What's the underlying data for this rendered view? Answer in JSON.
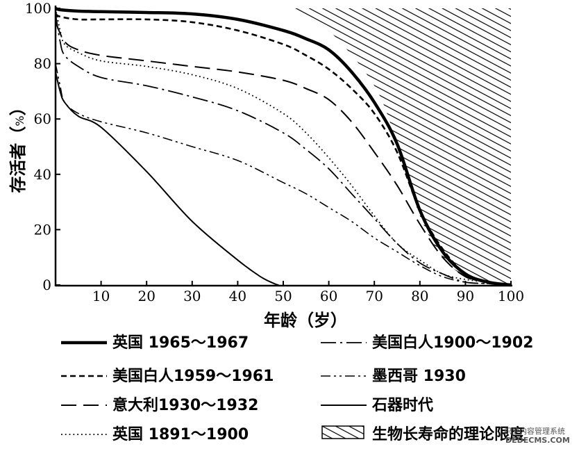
{
  "chart_data": {
    "type": "line",
    "title": "",
    "xlabel": "年龄（岁）",
    "ylabel": "存活者（%）",
    "ylabel_main": "存活者",
    "ylabel_unit_open": "（",
    "ylabel_unit_pct": "%",
    "ylabel_unit_close": "）",
    "xlim": [
      0,
      100
    ],
    "ylim": [
      0,
      100
    ],
    "x_ticks": [
      "10",
      "20",
      "30",
      "40",
      "50",
      "60",
      "70",
      "80",
      "90",
      "100"
    ],
    "y_ticks": [
      "0",
      "20",
      "40",
      "60",
      "80",
      "100"
    ],
    "grid": false,
    "legend_position": "bottom",
    "series": [
      {
        "name": "英国 1965～1967",
        "style": "thick-solid",
        "x": [
          0,
          1,
          5,
          10,
          20,
          30,
          40,
          50,
          55,
          60,
          65,
          70,
          75,
          80,
          85,
          90,
          95,
          100
        ],
        "y": [
          100,
          99.5,
          99,
          98.8,
          98.5,
          98,
          96,
          92,
          89,
          85,
          77,
          66,
          51,
          27,
          12,
          4,
          1,
          0
        ]
      },
      {
        "name": "美国白人1959～1961",
        "style": "short-dash",
        "x": [
          0,
          1,
          5,
          10,
          20,
          30,
          40,
          50,
          55,
          60,
          65,
          70,
          75,
          80,
          85,
          90,
          95,
          100
        ],
        "y": [
          98,
          97,
          96,
          96,
          96,
          95,
          92,
          87,
          83,
          78,
          71,
          62,
          48,
          27,
          13,
          4,
          1,
          0
        ]
      },
      {
        "name": "意大利1930～1932",
        "style": "long-dash",
        "x": [
          0,
          2,
          5,
          10,
          20,
          30,
          40,
          50,
          55,
          60,
          65,
          70,
          75,
          80,
          85,
          90,
          95,
          100
        ],
        "y": [
          95,
          88,
          85,
          83,
          81,
          79,
          77,
          74,
          71,
          67,
          59,
          48,
          36,
          22,
          10,
          3,
          1,
          0
        ]
      },
      {
        "name": "英国 1891～1900",
        "style": "dotted",
        "x": [
          0,
          1,
          2,
          5,
          10,
          20,
          30,
          40,
          50,
          55,
          60,
          65,
          70,
          75,
          80,
          85,
          90,
          95,
          100
        ],
        "y": [
          100,
          92,
          87,
          84,
          81,
          79,
          76,
          71,
          62,
          55,
          46,
          36,
          25,
          15,
          9,
          4,
          2,
          1,
          0
        ]
      },
      {
        "name": "美国白人1900～1902",
        "style": "dash-dot",
        "x": [
          0,
          1,
          2,
          5,
          10,
          20,
          30,
          40,
          50,
          55,
          60,
          65,
          70,
          75,
          80,
          85,
          90,
          95,
          100
        ],
        "y": [
          98,
          88,
          83,
          79,
          75,
          72,
          68,
          63,
          55,
          49,
          42,
          33,
          24,
          15,
          8,
          4,
          1,
          0.5,
          0
        ]
      },
      {
        "name": "墨西哥 1930",
        "style": "dash-dot-dot",
        "x": [
          0,
          1,
          2,
          5,
          10,
          20,
          30,
          40,
          50,
          55,
          60,
          65,
          70,
          75,
          80,
          85,
          90,
          95,
          100
        ],
        "y": [
          80,
          72,
          66,
          62,
          59,
          55,
          50,
          45,
          37,
          33,
          28,
          23,
          17,
          12,
          7,
          3,
          1,
          0.5,
          0
        ]
      },
      {
        "name": "石器时代",
        "style": "thin-solid",
        "x": [
          0,
          1,
          2,
          5,
          10,
          20,
          30,
          40,
          45,
          48,
          49
        ],
        "y": [
          77,
          70,
          66,
          61,
          57,
          41,
          23,
          9,
          3,
          0.5,
          0
        ]
      }
    ],
    "shaded_region": {
      "name": "生物长寿命的理论限度",
      "pattern": "diagonal-hatch",
      "boundary_x": [
        52,
        60,
        70,
        75,
        80,
        85,
        90,
        95,
        100
      ],
      "boundary_y": [
        100,
        92,
        72,
        51,
        25,
        10,
        3,
        0.5,
        0
      ]
    }
  },
  "watermark": {
    "line1": "织梦内容管理系统",
    "line2": "DEDECMS.COM"
  },
  "colors": {
    "ink": "#000000",
    "paper": "#ffffff"
  }
}
